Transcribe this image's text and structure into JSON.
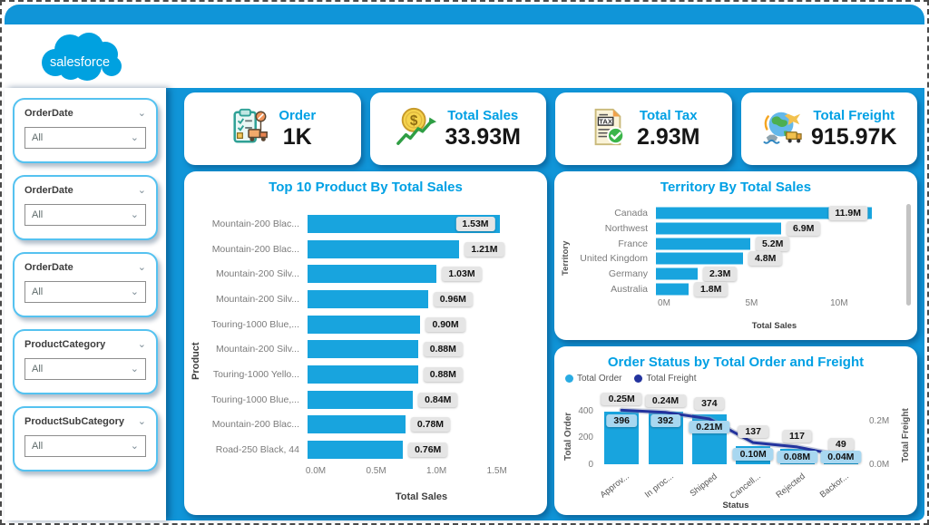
{
  "brand": {
    "logo_text": "salesforce"
  },
  "colors": {
    "accent": "#1095D8",
    "bar": "#18A4DE",
    "title": "#00A0E4",
    "line": "#23339E",
    "legend_order_dot": "#29ABE2",
    "legend_freight_dot": "#23339E"
  },
  "sidebar": {
    "filters": [
      {
        "label": "OrderDate",
        "value": "All"
      },
      {
        "label": "OrderDate",
        "value": "All"
      },
      {
        "label": "OrderDate",
        "value": "All"
      },
      {
        "label": "ProductCategory",
        "value": "All"
      },
      {
        "label": "ProductSubCategory",
        "value": "All"
      }
    ]
  },
  "kpis": [
    {
      "title": "Order",
      "value": "1K",
      "icon": "order-clipboard-truck-icon"
    },
    {
      "title": "Total Sales",
      "value": "33.93M",
      "icon": "coin-growth-icon"
    },
    {
      "title": "Total Tax",
      "value": "2.93M",
      "icon": "tax-document-check-icon"
    },
    {
      "title": "Total Freight",
      "value": "915.97K",
      "icon": "globe-shipping-icon"
    }
  ],
  "chart_data": [
    {
      "type": "bar",
      "orientation": "horizontal",
      "title": "Top 10 Product By Total Sales",
      "categories": [
        "Mountain-200 Blac...",
        "Mountain-200 Blac...",
        "Mountain-200 Silv...",
        "Mountain-200 Silv...",
        "Touring-1000 Blue,...",
        "Mountain-200 Silv...",
        "Touring-1000 Yello...",
        "Touring-1000 Blue,...",
        "Mountain-200 Blac...",
        "Road-250 Black, 44"
      ],
      "values": [
        1.53,
        1.21,
        1.03,
        0.96,
        0.9,
        0.88,
        0.88,
        0.84,
        0.78,
        0.76
      ],
      "labels": [
        "1.53M",
        "1.21M",
        "1.03M",
        "0.96M",
        "0.90M",
        "0.88M",
        "0.88M",
        "0.84M",
        "0.78M",
        "0.76M"
      ],
      "xlabel": "Total Sales",
      "ylabel": "Product",
      "x_tick_labels": [
        "0.0M",
        "0.5M",
        "1.0M",
        "1.5M"
      ],
      "x_tick_values": [
        0,
        0.5,
        1.0,
        1.5
      ],
      "xlim": [
        0,
        1.75
      ],
      "unit": "M"
    },
    {
      "type": "bar",
      "orientation": "horizontal",
      "title": "Territory By Total Sales",
      "categories": [
        "Canada",
        "Northwest",
        "France",
        "United Kingdom",
        "Germany",
        "Australia"
      ],
      "values": [
        11.9,
        6.9,
        5.2,
        4.8,
        2.3,
        1.8
      ],
      "labels": [
        "11.9M",
        "6.9M",
        "5.2M",
        "4.8M",
        "2.3M",
        "1.8M"
      ],
      "xlabel": "Total Sales",
      "ylabel": "Territory",
      "x_tick_labels": [
        "0M",
        "5M",
        "10M"
      ],
      "x_tick_values": [
        0,
        5,
        10
      ],
      "xlim": [
        0,
        12.6
      ],
      "unit": "M"
    },
    {
      "type": "combo",
      "title": "Order Status by Total Order and Freight",
      "categories": [
        "Approv...",
        "In proc...",
        "Shipped",
        "Cancell...",
        "Rejected",
        "Backor..."
      ],
      "series": [
        {
          "name": "Total Order",
          "type": "bar",
          "axis": "left",
          "values": [
            396,
            392,
            374,
            137,
            117,
            49
          ],
          "labels": [
            "396",
            "392",
            "374",
            "137",
            "117",
            "49"
          ],
          "color": "#29ABE2"
        },
        {
          "name": "Total Freight",
          "type": "line",
          "axis": "right",
          "values": [
            0.25,
            0.24,
            0.21,
            0.1,
            0.08,
            0.04
          ],
          "labels": [
            "0.25M",
            "0.24M",
            "0.21M",
            "0.10M",
            "0.08M",
            "0.04M"
          ],
          "color": "#23339E"
        }
      ],
      "left_axis": {
        "title": "Total Order",
        "tick_labels": [
          "0",
          "200",
          "400"
        ],
        "tick_values": [
          0,
          200,
          400
        ],
        "max": 420
      },
      "right_axis": {
        "title": "Total Freight",
        "tick_labels": [
          "0.0M",
          "0.2M"
        ],
        "tick_values": [
          0,
          0.2
        ],
        "max": 0.26
      },
      "xlabel": "Status",
      "legend_position": "top-left"
    }
  ]
}
